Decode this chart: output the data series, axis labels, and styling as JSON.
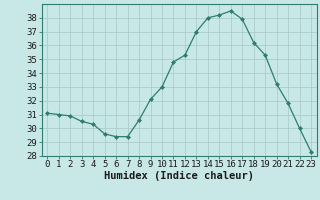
{
  "x": [
    0,
    1,
    2,
    3,
    4,
    5,
    6,
    7,
    8,
    9,
    10,
    11,
    12,
    13,
    14,
    15,
    16,
    17,
    18,
    19,
    20,
    21,
    22,
    23
  ],
  "y": [
    31.1,
    31.0,
    30.9,
    30.5,
    30.3,
    29.6,
    29.4,
    29.4,
    30.6,
    32.1,
    33.0,
    34.8,
    35.3,
    37.0,
    38.0,
    38.2,
    38.5,
    37.9,
    36.2,
    35.3,
    33.2,
    31.8,
    30.0,
    28.3
  ],
  "line_color": "#2e7d6e",
  "marker": "D",
  "marker_size": 2.0,
  "bg_color": "#c8e8e8",
  "grid_color": "#a8c8c8",
  "xlabel": "Humidex (Indice chaleur)",
  "ylim": [
    28,
    39
  ],
  "yticks": [
    28,
    29,
    30,
    31,
    32,
    33,
    34,
    35,
    36,
    37,
    38
  ],
  "xticks": [
    0,
    1,
    2,
    3,
    4,
    5,
    6,
    7,
    8,
    9,
    10,
    11,
    12,
    13,
    14,
    15,
    16,
    17,
    18,
    19,
    20,
    21,
    22,
    23
  ],
  "tick_fontsize": 6.5,
  "xlabel_fontsize": 7.5,
  "spine_color": "#2e7d6e"
}
